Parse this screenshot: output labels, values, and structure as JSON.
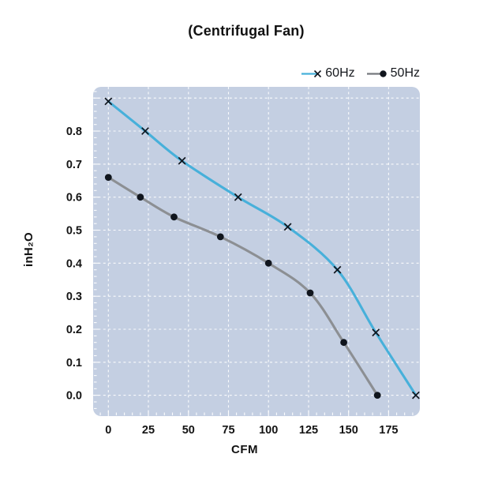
{
  "title": "(Centrifugal Fan)",
  "legend": {
    "items": [
      {
        "label": "60Hz",
        "marker": "x",
        "line_color": "#47b0da",
        "marker_color": "#10151d"
      },
      {
        "label": "50Hz",
        "marker": "dot",
        "line_color": "#76797d",
        "marker_color": "#10151d"
      }
    ]
  },
  "axes": {
    "x": {
      "label": "CFM",
      "tick_labels": [
        "0",
        "25",
        "50",
        "75",
        "100",
        "125",
        "150",
        "175"
      ],
      "tick_values": [
        0,
        25,
        50,
        75,
        100,
        125,
        150,
        175
      ]
    },
    "y": {
      "label": "inH₂O",
      "tick_labels": [
        "0.0",
        "0.1",
        "0.2",
        "0.3",
        "0.4",
        "0.5",
        "0.6",
        "0.7",
        "0.8"
      ],
      "tick_values": [
        0,
        0.1,
        0.2,
        0.3,
        0.4,
        0.5,
        0.6,
        0.7,
        0.8
      ]
    }
  },
  "colors": {
    "panel_bg": "#c4cfe2",
    "grid": "#ffffff",
    "series_60hz": "#47b0da",
    "series_50hz": "#8c8f93",
    "marker": "#10151d",
    "text": "#141414"
  },
  "chart_data": {
    "type": "line",
    "title": "(Centrifugal Fan)",
    "xlabel": "CFM",
    "ylabel": "inH2O",
    "xlim": [
      -9.5,
      194.5
    ],
    "ylim": [
      -0.063,
      0.934
    ],
    "grid": true,
    "grid_style": "white dashed, x every 25 CFM, y every 0.1 inH2O",
    "legend_position": "top-right",
    "series": [
      {
        "name": "60Hz",
        "marker": "x",
        "color": "#47b0da",
        "points": [
          [
            0,
            0.89
          ],
          [
            23,
            0.8
          ],
          [
            46,
            0.71
          ],
          [
            81,
            0.6
          ],
          [
            112,
            0.51
          ],
          [
            143,
            0.38
          ],
          [
            167,
            0.19
          ],
          [
            192,
            0.0
          ]
        ]
      },
      {
        "name": "50Hz",
        "marker": "circle",
        "color": "#8c8f93",
        "points": [
          [
            0,
            0.66
          ],
          [
            20,
            0.6
          ],
          [
            41,
            0.54
          ],
          [
            70,
            0.48
          ],
          [
            100,
            0.4
          ],
          [
            126,
            0.31
          ],
          [
            147,
            0.16
          ],
          [
            168,
            0.0
          ]
        ]
      }
    ]
  }
}
